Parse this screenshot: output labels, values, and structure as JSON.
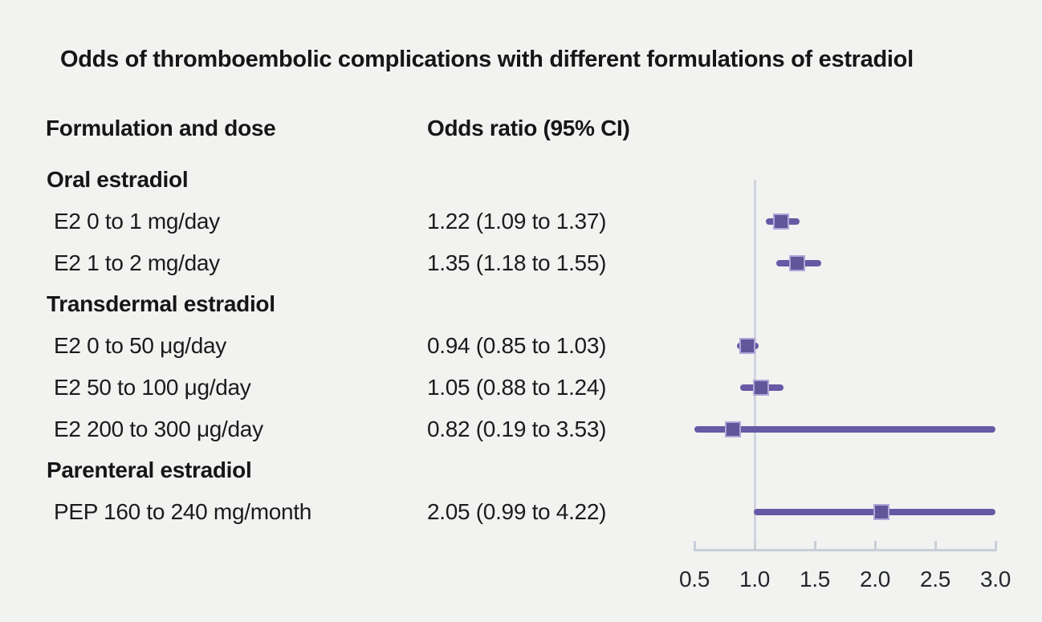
{
  "chart_data": {
    "type": "scatter",
    "variant": "forest-plot",
    "title": "Odds of thromboembolic complications with different formulations of estradiol",
    "column_headers": [
      "Formulation and dose",
      "Odds ratio (95% CI)"
    ],
    "rows": [
      {
        "kind": "group",
        "label": "Oral estradiol"
      },
      {
        "kind": "item",
        "label": "E2 0 to 1 mg/day",
        "or": 1.22,
        "ci_low": 1.09,
        "ci_high": 1.37,
        "or_text": "1.22 (1.09 to 1.37)"
      },
      {
        "kind": "item",
        "label": "E2 1 to 2 mg/day",
        "or": 1.35,
        "ci_low": 1.18,
        "ci_high": 1.55,
        "or_text": "1.35 (1.18 to 1.55)"
      },
      {
        "kind": "group",
        "label": "Transdermal estradiol"
      },
      {
        "kind": "item",
        "label": "E2 0 to 50 μg/day",
        "or": 0.94,
        "ci_low": 0.85,
        "ci_high": 1.03,
        "or_text": "0.94 (0.85 to 1.03)"
      },
      {
        "kind": "item",
        "label": "E2 50 to 100 μg/day",
        "or": 1.05,
        "ci_low": 0.88,
        "ci_high": 1.24,
        "or_text": "1.05 (0.88 to 1.24)"
      },
      {
        "kind": "item",
        "label": "E2 200 to 300 μg/day",
        "or": 0.82,
        "ci_low": 0.19,
        "ci_high": 3.53,
        "or_text": "0.82 (0.19 to 3.53)"
      },
      {
        "kind": "group",
        "label": "Parenteral estradiol"
      },
      {
        "kind": "item",
        "label": "PEP 160 to 240 mg/month",
        "or": 2.05,
        "ci_low": 0.99,
        "ci_high": 4.22,
        "or_text": "2.05 (0.99 to 4.22)"
      }
    ],
    "x_axis": {
      "tick_labels": [
        "0.5",
        "1.0",
        "1.5",
        "2.0",
        "2.5",
        "3.0"
      ],
      "tick_values": [
        0.5,
        1.0,
        1.5,
        2.0,
        2.5,
        3.0
      ],
      "range": [
        0.5,
        3.0
      ],
      "reference_line": 1.0,
      "ci_clipped_to_range": true,
      "grid": false
    },
    "legend": "none",
    "colors": {
      "background": "#f2f2f1",
      "ci_line": "#6759a4",
      "marker_fill": "#615699",
      "marker_border": "#b0a6d8",
      "axis": "#c9cfd8",
      "reference_line": "#cfd4dd",
      "text": "#1b1b1b"
    }
  }
}
